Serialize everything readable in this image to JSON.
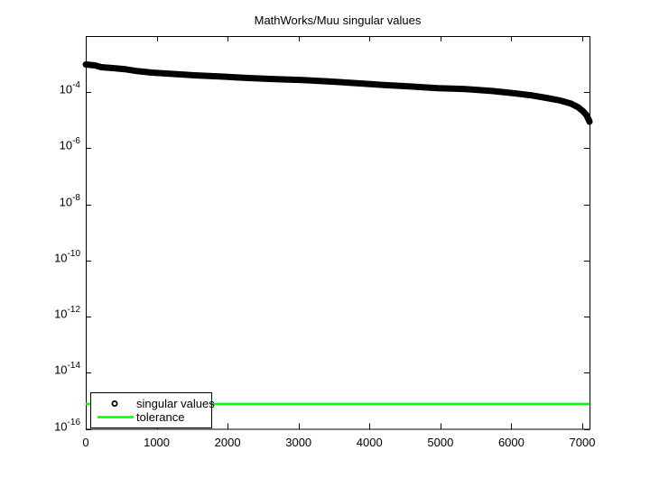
{
  "chart_data": {
    "type": "scatter",
    "title": "MathWorks/Muu singular values",
    "xlabel": "",
    "ylabel": "",
    "x_ticks": [
      0,
      1000,
      2000,
      3000,
      4000,
      5000,
      6000,
      7000
    ],
    "xlim": [
      0,
      7102
    ],
    "y_scale": "log",
    "ylim_exp": [
      -16,
      -2
    ],
    "y_tick_exponents": [
      -4,
      -6,
      -8,
      -10,
      -12,
      -14,
      -16
    ],
    "grid": false,
    "colors": {
      "background": "#ffffff",
      "axis": "#000000",
      "series": "#000000",
      "tolerance": "#00ff00"
    },
    "legend": {
      "position": "southwest",
      "entries": [
        {
          "label": "singular values",
          "marker": "circle",
          "color": "#000000"
        },
        {
          "label": "tolerance",
          "marker": "line",
          "color": "#00ff00"
        }
      ]
    },
    "series": [
      {
        "name": "singular values",
        "style": "markers",
        "marker": "o",
        "color": "#000000",
        "points": [
          [
            1,
            0.00097
          ],
          [
            130,
            0.0009
          ],
          [
            220,
            0.00078
          ],
          [
            380,
            0.00072
          ],
          [
            570,
            0.00065
          ],
          [
            730,
            0.00056
          ],
          [
            930,
            0.0005
          ],
          [
            1210,
            0.00045
          ],
          [
            1530,
            0.0004
          ],
          [
            1910,
            0.00036
          ],
          [
            2290,
            0.00032
          ],
          [
            2670,
            0.00029
          ],
          [
            3060,
            0.00027
          ],
          [
            3440,
            0.00024
          ],
          [
            3820,
            0.00021
          ],
          [
            4200,
            0.00018
          ],
          [
            4580,
            0.00016
          ],
          [
            4960,
            0.00014
          ],
          [
            5350,
            0.00013
          ],
          [
            5730,
            0.00011
          ],
          [
            6050,
            9.1e-05
          ],
          [
            6300,
            7.6e-05
          ],
          [
            6490,
            6.3e-05
          ],
          [
            6680,
            5.1e-05
          ],
          [
            6840,
            3.9e-05
          ],
          [
            6940,
            2.9e-05
          ],
          [
            7010,
            2.1e-05
          ],
          [
            7060,
            1.5e-05
          ],
          [
            7090,
            1.05e-05
          ],
          [
            7102,
            8.8e-06
          ]
        ]
      },
      {
        "name": "tolerance",
        "style": "hline",
        "color": "#00ff00",
        "value": 7.7e-16
      }
    ]
  }
}
